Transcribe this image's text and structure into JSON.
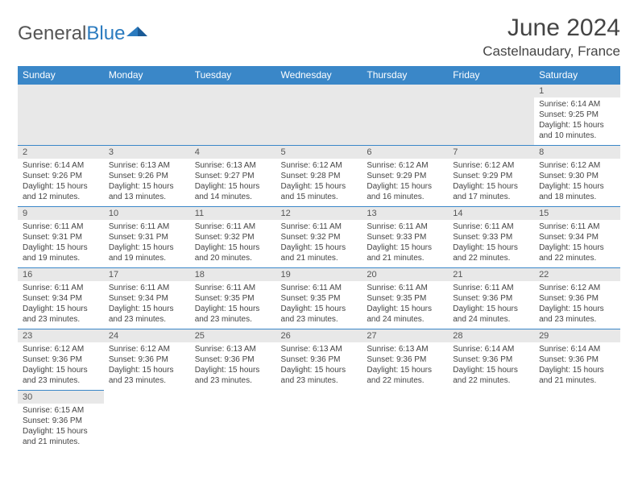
{
  "logo": {
    "general": "General",
    "blue": "Blue"
  },
  "title": "June 2024",
  "location": "Castelnaudary, France",
  "colors": {
    "header_bg": "#3a87c8",
    "header_fg": "#ffffff",
    "daynum_bg": "#e8e8e8",
    "border": "#3a87c8",
    "text": "#444444"
  },
  "weekdays": [
    "Sunday",
    "Monday",
    "Tuesday",
    "Wednesday",
    "Thursday",
    "Friday",
    "Saturday"
  ],
  "weeks": [
    [
      null,
      null,
      null,
      null,
      null,
      null,
      {
        "n": "1",
        "sunrise": "Sunrise: 6:14 AM",
        "sunset": "Sunset: 9:25 PM",
        "daylight": "Daylight: 15 hours and 10 minutes."
      }
    ],
    [
      {
        "n": "2",
        "sunrise": "Sunrise: 6:14 AM",
        "sunset": "Sunset: 9:26 PM",
        "daylight": "Daylight: 15 hours and 12 minutes."
      },
      {
        "n": "3",
        "sunrise": "Sunrise: 6:13 AM",
        "sunset": "Sunset: 9:26 PM",
        "daylight": "Daylight: 15 hours and 13 minutes."
      },
      {
        "n": "4",
        "sunrise": "Sunrise: 6:13 AM",
        "sunset": "Sunset: 9:27 PM",
        "daylight": "Daylight: 15 hours and 14 minutes."
      },
      {
        "n": "5",
        "sunrise": "Sunrise: 6:12 AM",
        "sunset": "Sunset: 9:28 PM",
        "daylight": "Daylight: 15 hours and 15 minutes."
      },
      {
        "n": "6",
        "sunrise": "Sunrise: 6:12 AM",
        "sunset": "Sunset: 9:29 PM",
        "daylight": "Daylight: 15 hours and 16 minutes."
      },
      {
        "n": "7",
        "sunrise": "Sunrise: 6:12 AM",
        "sunset": "Sunset: 9:29 PM",
        "daylight": "Daylight: 15 hours and 17 minutes."
      },
      {
        "n": "8",
        "sunrise": "Sunrise: 6:12 AM",
        "sunset": "Sunset: 9:30 PM",
        "daylight": "Daylight: 15 hours and 18 minutes."
      }
    ],
    [
      {
        "n": "9",
        "sunrise": "Sunrise: 6:11 AM",
        "sunset": "Sunset: 9:31 PM",
        "daylight": "Daylight: 15 hours and 19 minutes."
      },
      {
        "n": "10",
        "sunrise": "Sunrise: 6:11 AM",
        "sunset": "Sunset: 9:31 PM",
        "daylight": "Daylight: 15 hours and 19 minutes."
      },
      {
        "n": "11",
        "sunrise": "Sunrise: 6:11 AM",
        "sunset": "Sunset: 9:32 PM",
        "daylight": "Daylight: 15 hours and 20 minutes."
      },
      {
        "n": "12",
        "sunrise": "Sunrise: 6:11 AM",
        "sunset": "Sunset: 9:32 PM",
        "daylight": "Daylight: 15 hours and 21 minutes."
      },
      {
        "n": "13",
        "sunrise": "Sunrise: 6:11 AM",
        "sunset": "Sunset: 9:33 PM",
        "daylight": "Daylight: 15 hours and 21 minutes."
      },
      {
        "n": "14",
        "sunrise": "Sunrise: 6:11 AM",
        "sunset": "Sunset: 9:33 PM",
        "daylight": "Daylight: 15 hours and 22 minutes."
      },
      {
        "n": "15",
        "sunrise": "Sunrise: 6:11 AM",
        "sunset": "Sunset: 9:34 PM",
        "daylight": "Daylight: 15 hours and 22 minutes."
      }
    ],
    [
      {
        "n": "16",
        "sunrise": "Sunrise: 6:11 AM",
        "sunset": "Sunset: 9:34 PM",
        "daylight": "Daylight: 15 hours and 23 minutes."
      },
      {
        "n": "17",
        "sunrise": "Sunrise: 6:11 AM",
        "sunset": "Sunset: 9:34 PM",
        "daylight": "Daylight: 15 hours and 23 minutes."
      },
      {
        "n": "18",
        "sunrise": "Sunrise: 6:11 AM",
        "sunset": "Sunset: 9:35 PM",
        "daylight": "Daylight: 15 hours and 23 minutes."
      },
      {
        "n": "19",
        "sunrise": "Sunrise: 6:11 AM",
        "sunset": "Sunset: 9:35 PM",
        "daylight": "Daylight: 15 hours and 23 minutes."
      },
      {
        "n": "20",
        "sunrise": "Sunrise: 6:11 AM",
        "sunset": "Sunset: 9:35 PM",
        "daylight": "Daylight: 15 hours and 24 minutes."
      },
      {
        "n": "21",
        "sunrise": "Sunrise: 6:11 AM",
        "sunset": "Sunset: 9:36 PM",
        "daylight": "Daylight: 15 hours and 24 minutes."
      },
      {
        "n": "22",
        "sunrise": "Sunrise: 6:12 AM",
        "sunset": "Sunset: 9:36 PM",
        "daylight": "Daylight: 15 hours and 23 minutes."
      }
    ],
    [
      {
        "n": "23",
        "sunrise": "Sunrise: 6:12 AM",
        "sunset": "Sunset: 9:36 PM",
        "daylight": "Daylight: 15 hours and 23 minutes."
      },
      {
        "n": "24",
        "sunrise": "Sunrise: 6:12 AM",
        "sunset": "Sunset: 9:36 PM",
        "daylight": "Daylight: 15 hours and 23 minutes."
      },
      {
        "n": "25",
        "sunrise": "Sunrise: 6:13 AM",
        "sunset": "Sunset: 9:36 PM",
        "daylight": "Daylight: 15 hours and 23 minutes."
      },
      {
        "n": "26",
        "sunrise": "Sunrise: 6:13 AM",
        "sunset": "Sunset: 9:36 PM",
        "daylight": "Daylight: 15 hours and 23 minutes."
      },
      {
        "n": "27",
        "sunrise": "Sunrise: 6:13 AM",
        "sunset": "Sunset: 9:36 PM",
        "daylight": "Daylight: 15 hours and 22 minutes."
      },
      {
        "n": "28",
        "sunrise": "Sunrise: 6:14 AM",
        "sunset": "Sunset: 9:36 PM",
        "daylight": "Daylight: 15 hours and 22 minutes."
      },
      {
        "n": "29",
        "sunrise": "Sunrise: 6:14 AM",
        "sunset": "Sunset: 9:36 PM",
        "daylight": "Daylight: 15 hours and 21 minutes."
      }
    ],
    [
      {
        "n": "30",
        "sunrise": "Sunrise: 6:15 AM",
        "sunset": "Sunset: 9:36 PM",
        "daylight": "Daylight: 15 hours and 21 minutes."
      },
      null,
      null,
      null,
      null,
      null,
      null
    ]
  ]
}
